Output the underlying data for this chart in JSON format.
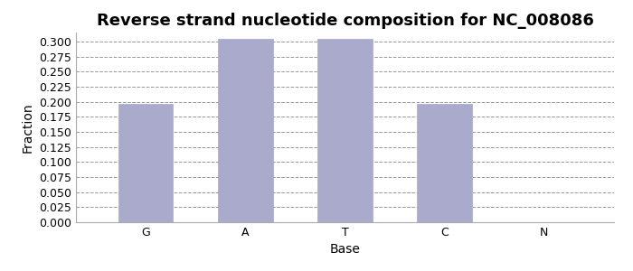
{
  "title": "Reverse strand nucleotide composition for NC_008086",
  "categories": [
    "G",
    "A",
    "T",
    "C",
    "N"
  ],
  "values": [
    0.197,
    0.304,
    0.304,
    0.196,
    0.0
  ],
  "bar_color": "#aaaacc",
  "bar_edgecolor": "#aaaacc",
  "xlabel": "Base",
  "ylabel": "Fraction",
  "ylim": [
    0.0,
    0.315
  ],
  "ytick_step": 0.025,
  "title_fontsize": 13,
  "axis_label_fontsize": 10,
  "tick_fontsize": 9,
  "grid_color": "#999999",
  "grid_linestyle": "--",
  "background_color": "#ffffff",
  "spine_color": "#aaaaaa",
  "bar_width": 0.55,
  "figsize": [
    7.0,
    3.0
  ],
  "dpi": 100
}
